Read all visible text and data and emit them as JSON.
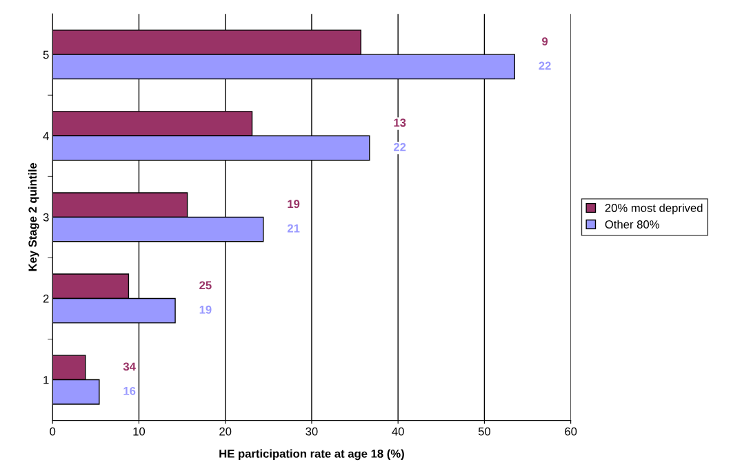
{
  "chart_data": {
    "type": "bar",
    "orientation": "horizontal",
    "xlabel": "HE participation rate at age 18 (%)",
    "ylabel": "Key Stage 2 quintile",
    "categories": [
      "5",
      "4",
      "3",
      "2",
      "1"
    ],
    "series": [
      {
        "name": "20% most deprived",
        "color": "#993366",
        "values": [
          35.7,
          23.1,
          15.6,
          8.8,
          3.8
        ]
      },
      {
        "name": "Other 80%",
        "color": "#9999ff",
        "values": [
          53.5,
          36.7,
          24.4,
          14.2,
          5.4
        ]
      }
    ],
    "annotations": [
      "9",
      "22",
      "13",
      "22",
      "19",
      "21",
      "25",
      "19",
      "34",
      "16"
    ],
    "xlim": [
      0,
      60
    ],
    "xticks": [
      0,
      10,
      20,
      30,
      40,
      50,
      60
    ],
    "grid": "x",
    "legend": "right"
  }
}
